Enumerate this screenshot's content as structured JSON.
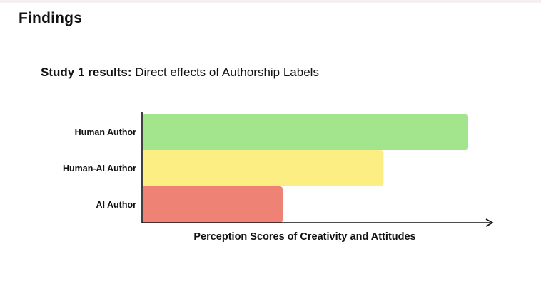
{
  "slide": {
    "section_title": "Findings"
  },
  "chart_data": {
    "type": "bar",
    "orientation": "horizontal",
    "title_bold": "Study 1 results:",
    "title_rest": "Direct effects of Authorship Labels",
    "xlabel": "Perception Scores of Creativity and Attitudes",
    "ylabel": "",
    "categories": [
      "Human Author",
      "Human-AI Author",
      "AI Author"
    ],
    "values": [
      100,
      74,
      43
    ],
    "xlim": [
      0,
      106
    ],
    "grid": false,
    "colors": [
      "#a3e58c",
      "#fcee82",
      "#ee8275"
    ]
  }
}
